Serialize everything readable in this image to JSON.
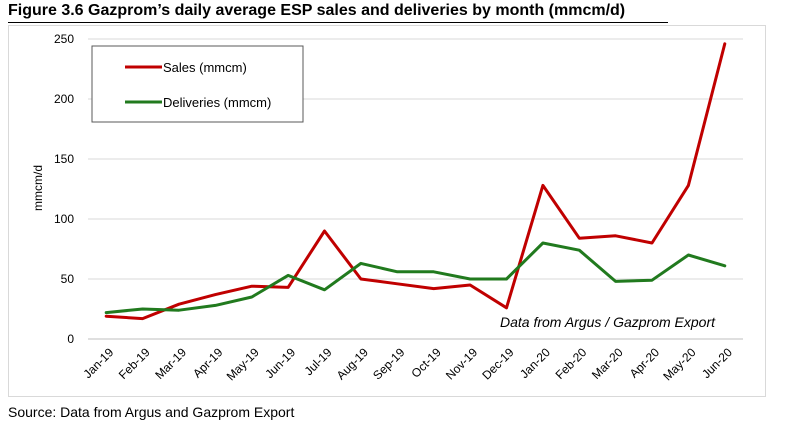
{
  "title": "Figure 3.6 Gazprom’s daily average ESP sales and deliveries by month (mmcm/d)",
  "source": "Source: Data from Argus and Gazprom Export",
  "chart_data": {
    "type": "line",
    "title": "Figure 3.6 Gazprom’s daily average ESP sales and deliveries by month (mmcm/d)",
    "xlabel": "",
    "ylabel": "mmcm/d",
    "ylim": [
      0,
      250
    ],
    "yticks": [
      0,
      50,
      100,
      150,
      200,
      250
    ],
    "grid": "horizontal",
    "legend_position": "top-left",
    "annotation": "Data from Argus / Gazprom Export",
    "categories": [
      "Jan-19",
      "Feb-19",
      "Mar-19",
      "Apr-19",
      "May-19",
      "Jun-19",
      "Jul-19",
      "Aug-19",
      "Sep-19",
      "Oct-19",
      "Nov-19",
      "Dec-19",
      "Jan-20",
      "Feb-20",
      "Mar-20",
      "Apr-20",
      "May-20",
      "Jun-20"
    ],
    "series": [
      {
        "name": "Sales (mmcm)",
        "color": "#c00000",
        "values": [
          19,
          17,
          29,
          37,
          44,
          43,
          90,
          50,
          46,
          42,
          45,
          26,
          128,
          84,
          86,
          80,
          128,
          246
        ]
      },
      {
        "name": "Deliveries (mmcm)",
        "color": "#217a1e",
        "values": [
          22,
          25,
          24,
          28,
          35,
          53,
          41,
          63,
          56,
          56,
          50,
          50,
          80,
          74,
          48,
          49,
          70,
          61
        ]
      }
    ]
  }
}
